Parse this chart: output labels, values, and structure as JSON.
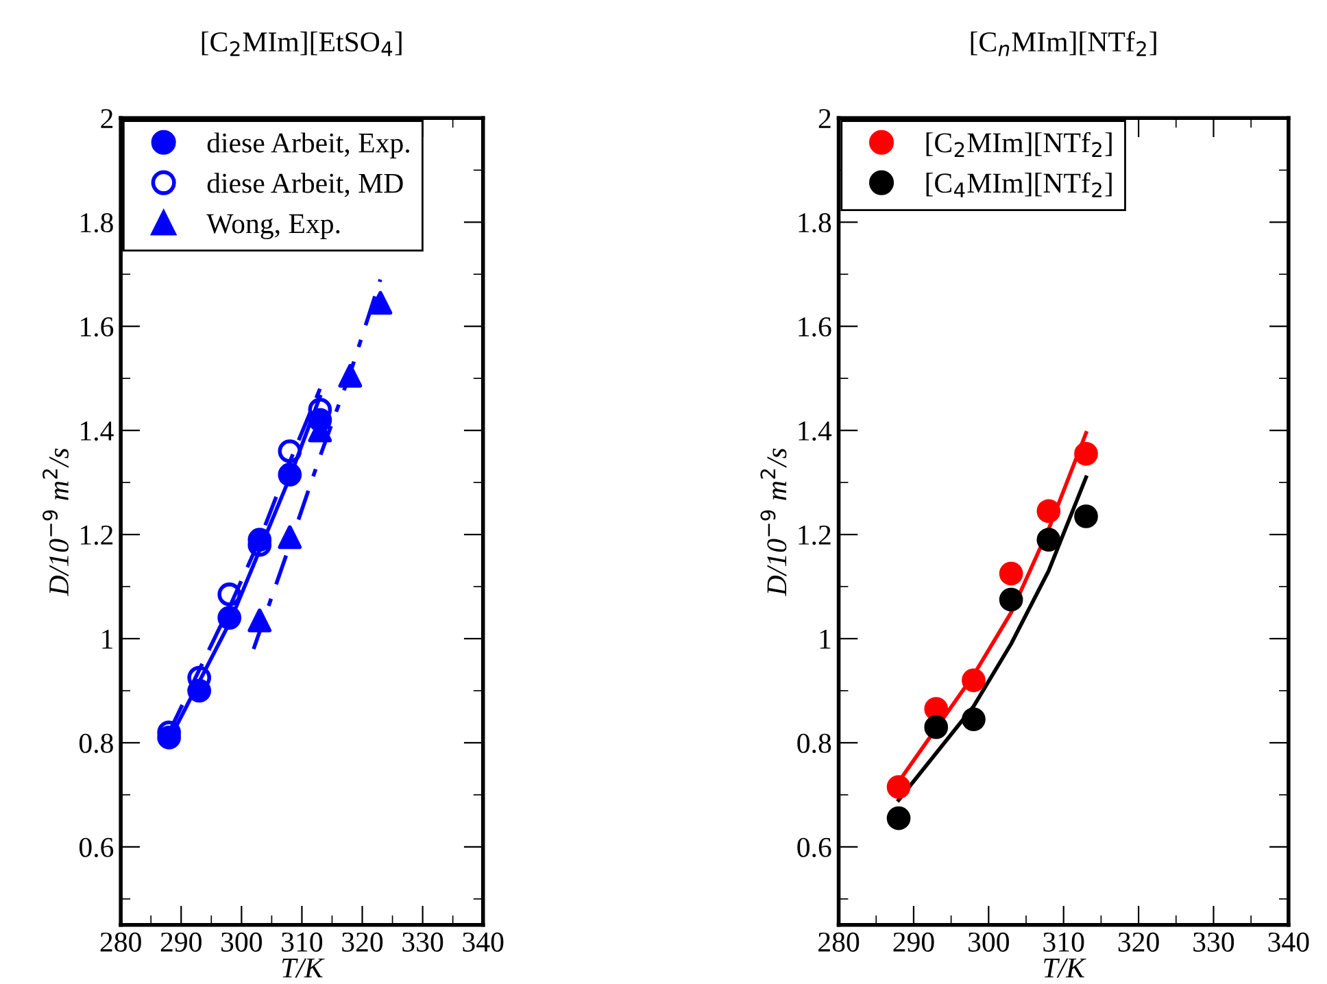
{
  "chart_data": [
    {
      "type": "scatter",
      "title": "[C$_{2}$MIm][EtSO$_{4}$]",
      "xlabel": "T/K",
      "ylabel": "D/10$^{−9}$ m$^{2}$/s",
      "xlim": [
        280,
        340
      ],
      "ylim": [
        0.45,
        2.0
      ],
      "xticks": [
        280,
        {
          "value": 285,
          "label": null
        },
        290,
        {
          "value": 295,
          "label": null
        },
        300,
        {
          "value": 305,
          "label": null
        },
        310,
        {
          "value": 315,
          "label": null
        },
        320,
        {
          "value": 325,
          "label": null
        },
        330,
        {
          "value": 335,
          "label": null
        },
        340
      ],
      "yticks": [
        {
          "value": 0.5,
          "label": null
        },
        0.6,
        {
          "value": 0.7,
          "label": null
        },
        0.8,
        {
          "value": 0.9,
          "label": null
        },
        1,
        {
          "value": 1.1,
          "label": null
        },
        1.2,
        {
          "value": 1.3,
          "label": null
        },
        1.4,
        {
          "value": 1.5,
          "label": null
        },
        1.6,
        {
          "value": 1.7,
          "label": null
        },
        1.8,
        {
          "value": 1.9,
          "label": null
        },
        2
      ],
      "legend": "top left",
      "grid": false,
      "series": [
        {
          "name": "diese Arbeit, Exp.",
          "marker": "circle",
          "color": "#0000ff",
          "x": [
            288,
            293,
            298,
            303,
            308,
            313
          ],
          "values": [
            0.81,
            0.9,
            1.04,
            1.19,
            1.315,
            1.42
          ]
        },
        {
          "name": "diese Arbeit, MD",
          "marker": "open circle",
          "color": "#0000ff",
          "x": [
            288,
            293,
            298,
            303,
            308,
            313
          ],
          "values": [
            0.82,
            0.925,
            1.085,
            1.18,
            1.36,
            1.44
          ]
        },
        {
          "name": "Wong, Exp.",
          "marker": "triangle",
          "color": "#0000ff",
          "x": [
            303,
            308,
            313,
            318,
            323
          ],
          "values": [
            1.035,
            1.195,
            1.4,
            1.505,
            1.645
          ]
        },
        {
          "type": "line",
          "line_style": "solid",
          "color": "#0000ff",
          "x": [
            288,
            298,
            303,
            308,
            313
          ],
          "values": [
            0.805,
            1.03,
            1.17,
            1.31,
            1.465
          ]
        },
        {
          "type": "line",
          "line_style": "dashed",
          "color": "#0000ff",
          "x": [
            288,
            298,
            303,
            308,
            313
          ],
          "values": [
            0.82,
            1.06,
            1.19,
            1.34,
            1.48
          ]
        },
        {
          "type": "line",
          "line_style": "dashdot",
          "color": "#0000ff",
          "x": [
            302,
            308,
            313,
            318,
            323
          ],
          "values": [
            0.98,
            1.18,
            1.35,
            1.51,
            1.69
          ]
        }
      ]
    },
    {
      "type": "scatter",
      "title": "[C$_{n}$MIm][NTf$_{2}$]",
      "xlabel": "T/K",
      "ylabel": "D/10$^{−9}$ m$^{2}$/s",
      "xlim": [
        280,
        340
      ],
      "ylim": [
        0.45,
        2.0
      ],
      "xticks": [
        280,
        {
          "value": 285,
          "label": null
        },
        290,
        {
          "value": 295,
          "label": null
        },
        300,
        {
          "value": 305,
          "label": null
        },
        310,
        {
          "value": 315,
          "label": null
        },
        320,
        {
          "value": 325,
          "label": null
        },
        330,
        {
          "value": 335,
          "label": null
        },
        340
      ],
      "yticks": [
        {
          "value": 0.5,
          "label": null
        },
        0.6,
        {
          "value": 0.7,
          "label": null
        },
        0.8,
        {
          "value": 0.9,
          "label": null
        },
        1,
        {
          "value": 1.1,
          "label": null
        },
        1.2,
        {
          "value": 1.3,
          "label": null
        },
        1.4,
        {
          "value": 1.5,
          "label": null
        },
        1.6,
        {
          "value": 1.7,
          "label": null
        },
        1.8,
        {
          "value": 1.9,
          "label": null
        },
        2
      ],
      "legend": "top left",
      "grid": false,
      "series": [
        {
          "name": "[C$_{2}$MIm][NTf$_{2}$]",
          "marker": "circle",
          "color": "#ff0000",
          "x": [
            288,
            293,
            298,
            303,
            308,
            313
          ],
          "values": [
            0.715,
            0.865,
            0.92,
            1.125,
            1.245,
            1.355
          ]
        },
        {
          "name": "[C$_{4}$MIm][NTf$_{2}$]",
          "marker": "circle",
          "color": "#000000",
          "x": [
            288,
            293,
            298,
            303,
            308,
            313
          ],
          "values": [
            0.655,
            0.83,
            0.845,
            1.075,
            1.19,
            1.235
          ]
        },
        {
          "type": "line",
          "line_style": "solid",
          "color": "#ff0000",
          "x": [
            288,
            298,
            303,
            308,
            313
          ],
          "values": [
            0.725,
            0.93,
            1.05,
            1.21,
            1.395
          ]
        },
        {
          "type": "line",
          "line_style": "solid",
          "color": "#000000",
          "x": [
            288,
            298,
            303,
            308,
            313
          ],
          "values": [
            0.69,
            0.87,
            0.99,
            1.13,
            1.31
          ]
        }
      ]
    }
  ]
}
